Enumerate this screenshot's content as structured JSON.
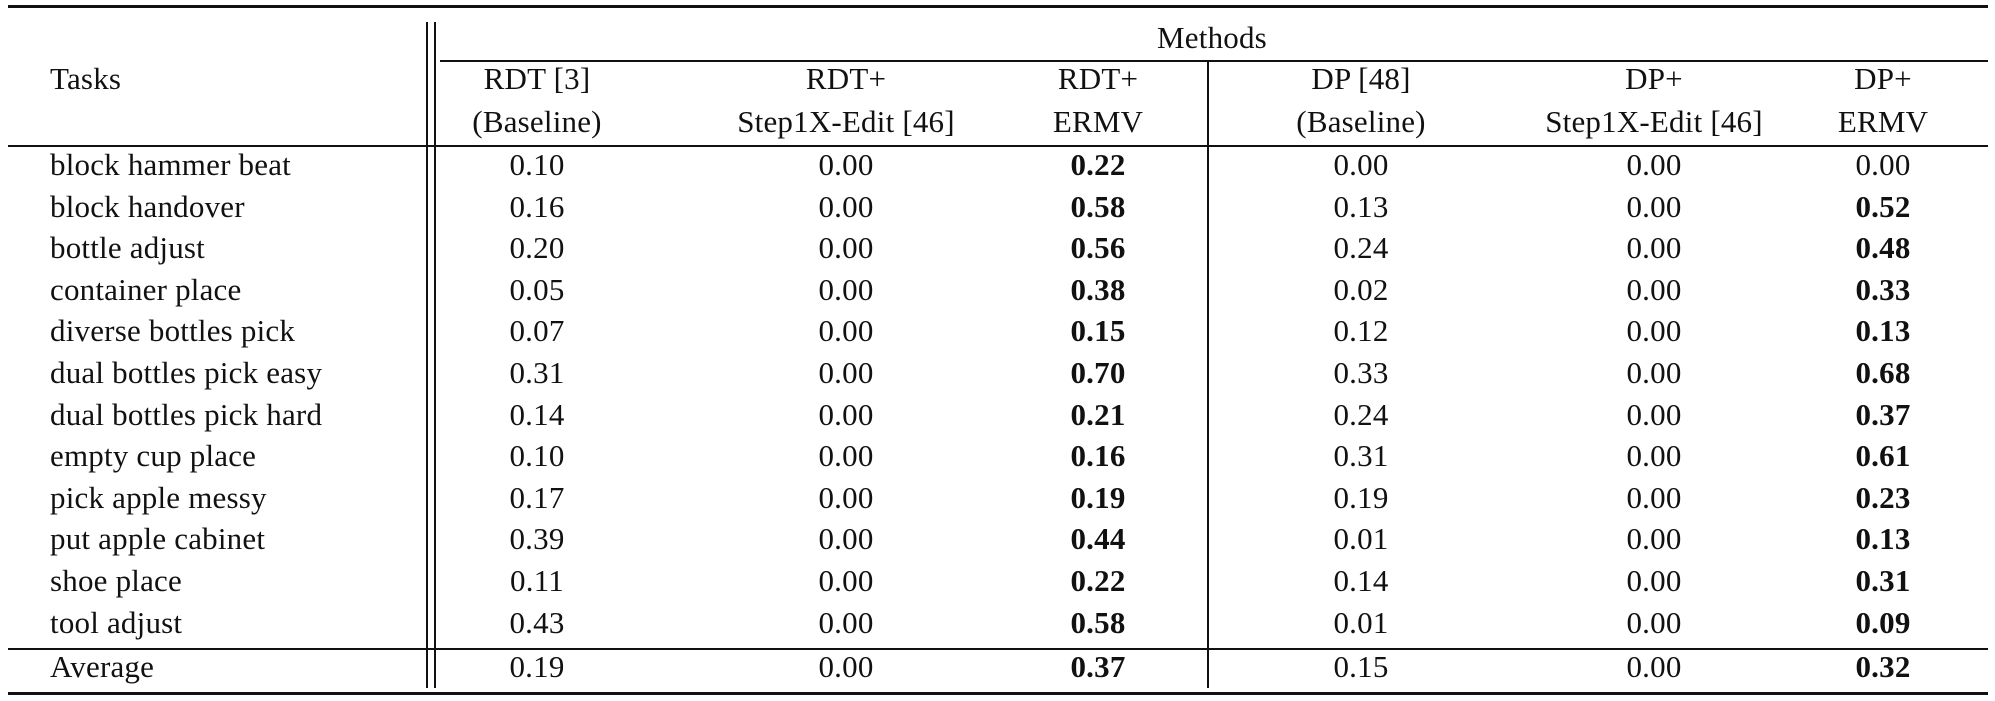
{
  "table": {
    "tasks_header": "Tasks",
    "group_header": "Methods",
    "columns": [
      {
        "line1": "RDT [3]",
        "line2": "(Baseline)"
      },
      {
        "line1": "RDT+",
        "line2": "Step1X-Edit [46]"
      },
      {
        "line1": "RDT+",
        "line2": "ERMV"
      },
      {
        "line1": "DP [48]",
        "line2": "(Baseline)"
      },
      {
        "line1": "DP+",
        "line2": "Step1X-Edit [46]"
      },
      {
        "line1": "DP+",
        "line2": "ERMV"
      }
    ],
    "rows": [
      {
        "task": "block hammer beat",
        "values": [
          "0.10",
          "0.00",
          "0.22",
          "0.00",
          "0.00",
          "0.00"
        ],
        "bold": [
          2
        ]
      },
      {
        "task": "block handover",
        "values": [
          "0.16",
          "0.00",
          "0.58",
          "0.13",
          "0.00",
          "0.52"
        ],
        "bold": [
          2,
          5
        ]
      },
      {
        "task": "bottle adjust",
        "values": [
          "0.20",
          "0.00",
          "0.56",
          "0.24",
          "0.00",
          "0.48"
        ],
        "bold": [
          2,
          5
        ]
      },
      {
        "task": "container place",
        "values": [
          "0.05",
          "0.00",
          "0.38",
          "0.02",
          "0.00",
          "0.33"
        ],
        "bold": [
          2,
          5
        ]
      },
      {
        "task": "diverse bottles pick",
        "values": [
          "0.07",
          "0.00",
          "0.15",
          "0.12",
          "0.00",
          "0.13"
        ],
        "bold": [
          2,
          5
        ]
      },
      {
        "task": "dual bottles pick easy",
        "values": [
          "0.31",
          "0.00",
          "0.70",
          "0.33",
          "0.00",
          "0.68"
        ],
        "bold": [
          2,
          5
        ]
      },
      {
        "task": "dual bottles pick hard",
        "values": [
          "0.14",
          "0.00",
          "0.21",
          "0.24",
          "0.00",
          "0.37"
        ],
        "bold": [
          2,
          5
        ]
      },
      {
        "task": "empty cup place",
        "values": [
          "0.10",
          "0.00",
          "0.16",
          "0.31",
          "0.00",
          "0.61"
        ],
        "bold": [
          2,
          5
        ]
      },
      {
        "task": "pick apple messy",
        "values": [
          "0.17",
          "0.00",
          "0.19",
          "0.19",
          "0.00",
          "0.23"
        ],
        "bold": [
          2,
          5
        ]
      },
      {
        "task": "put apple cabinet",
        "values": [
          "0.39",
          "0.00",
          "0.44",
          "0.01",
          "0.00",
          "0.13"
        ],
        "bold": [
          2,
          5
        ]
      },
      {
        "task": "shoe place",
        "values": [
          "0.11",
          "0.00",
          "0.22",
          "0.14",
          "0.00",
          "0.31"
        ],
        "bold": [
          2,
          5
        ]
      },
      {
        "task": "tool adjust",
        "values": [
          "0.43",
          "0.00",
          "0.58",
          "0.01",
          "0.00",
          "0.09"
        ],
        "bold": [
          2,
          5
        ]
      }
    ],
    "average": {
      "task": "Average",
      "values": [
        "0.19",
        "0.00",
        "0.37",
        "0.15",
        "0.00",
        "0.32"
      ],
      "bold": [
        2,
        5
      ]
    }
  }
}
